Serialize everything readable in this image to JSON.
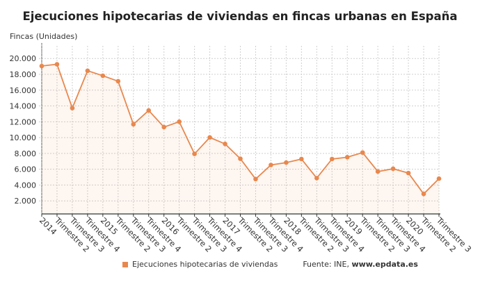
{
  "chart_data": {
    "type": "line",
    "title": "Ejecuciones hipotecarias de viviendas en fincas urbanas en España",
    "ylabel": "Fincas (Unidades)",
    "xlabel": "",
    "categories": [
      "2014",
      "Trimestre 2",
      "Trimestre 3",
      "Trimestre 4",
      "2015",
      "Trimestre 2",
      "Trimestre 3",
      "Trimestre 4",
      "2016",
      "Trimestre 2",
      "Trimestre 3",
      "Trimestre 4",
      "2017",
      "Trimestre 2",
      "Trimestre 3",
      "Trimestre 4",
      "2018",
      "Trimestre 2",
      "Trimestre 3",
      "Trimestre 4",
      "2019",
      "Trimestre 2",
      "Trimestre 3",
      "Trimestre 4",
      "2020",
      "Trimestre 2",
      "Trimestre 3"
    ],
    "series": [
      {
        "name": "Ejecuciones hipotecarias de viviendas",
        "color": "#e8884e",
        "values": [
          19050,
          19270,
          13730,
          18450,
          17820,
          17130,
          11680,
          13430,
          11330,
          12010,
          7940,
          10020,
          9200,
          7330,
          4760,
          6540,
          6840,
          7290,
          4880,
          7290,
          7520,
          8110,
          5710,
          6060,
          5520,
          2880,
          4810
        ]
      }
    ],
    "yticks": [
      2000,
      4000,
      6000,
      8000,
      10000,
      12000,
      14000,
      16000,
      18000,
      20000
    ],
    "ytick_labels": [
      "2.000",
      "4.000",
      "6.000",
      "8.000",
      "10.000",
      "12.000",
      "14.000",
      "16.000",
      "18.000",
      "20.000"
    ],
    "ylim": [
      350,
      21600
    ],
    "grid": true,
    "legend_position": "bottom"
  },
  "source_label": "Fuente: INE,",
  "source_site": "www.epdata.es"
}
